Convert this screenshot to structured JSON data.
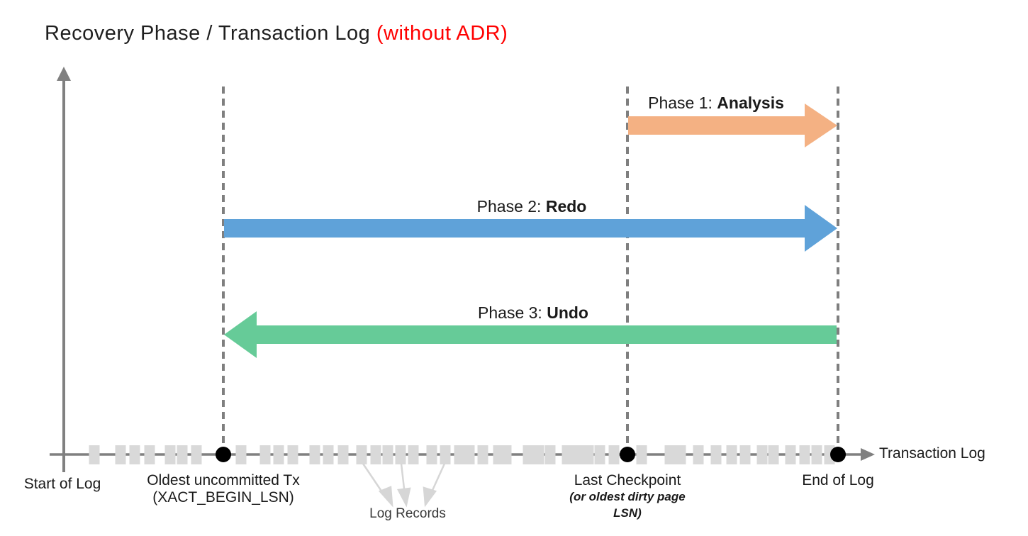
{
  "title": {
    "main": "Recovery Phase / Transaction Log ",
    "highlight": "(without ADR)",
    "highlight_color": "#ff0000"
  },
  "phases": [
    {
      "label": "Phase 1: ",
      "name": "Analysis",
      "color": "#F4B183",
      "direction": "right"
    },
    {
      "label": "Phase 2: ",
      "name": "Redo",
      "color": "#5FA2D9",
      "direction": "right"
    },
    {
      "label": "Phase 3: ",
      "name": "Undo",
      "color": "#66CB98",
      "direction": "left"
    }
  ],
  "axis": {
    "x_label": "Transaction Log",
    "log_records_label": "Log Records",
    "markers": {
      "start": {
        "label": "Start of Log"
      },
      "oldest_tx": {
        "label": "Oldest uncommitted Tx",
        "sublabel": "(XACT_BEGIN_LSN)"
      },
      "checkpoint": {
        "label": "Last Checkpoint",
        "sublabel": "(or oldest dirty page LSN)"
      },
      "end": {
        "label": "End of Log"
      }
    }
  },
  "colors": {
    "axis_gray": "#808080",
    "dashed_gray": "#7f7f7f",
    "log_record_gray": "#D9D9D9",
    "callout_gray": "#D6D6D6",
    "dot_black": "#000000"
  },
  "log_record_positions": [
    133,
    170,
    190,
    211,
    240,
    257,
    277,
    340,
    374,
    393,
    413,
    444,
    463,
    484,
    510,
    530,
    547,
    565,
    583,
    609,
    628,
    648,
    662,
    681,
    703,
    714,
    745,
    760,
    776,
    800,
    815,
    830,
    846,
    866,
    905,
    945,
    960,
    985,
    1010,
    1032,
    1051,
    1075,
    1091,
    1115,
    1135,
    1152,
    1170
  ]
}
